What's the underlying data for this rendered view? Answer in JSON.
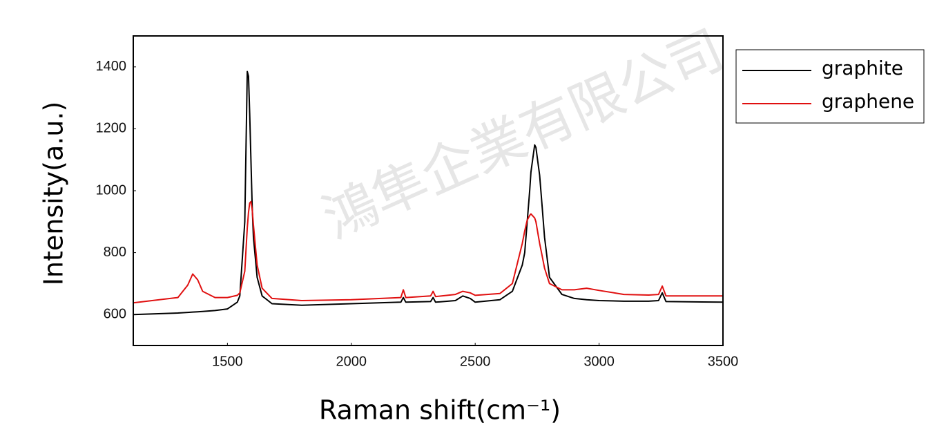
{
  "chart_data": {
    "type": "line",
    "x_label": "Raman shift(cm⁻¹)",
    "y_label": "Intensity(a.u.)",
    "watermark": "鴻隼企業有限公司",
    "legend": "outside-right",
    "xlim": [
      1120,
      3500
    ],
    "xticks": [
      1500,
      2000,
      2500,
      3000,
      3500
    ],
    "ylim": [
      500,
      1500
    ],
    "yticks": [
      600,
      800,
      1000,
      1200,
      1400
    ],
    "x": [
      1120,
      1300,
      1340,
      1360,
      1380,
      1400,
      1450,
      1500,
      1540,
      1550,
      1570,
      1580,
      1585,
      1590,
      1595,
      1600,
      1605,
      1620,
      1640,
      1680,
      1800,
      2000,
      2200,
      2210,
      2220,
      2320,
      2330,
      2340,
      2420,
      2450,
      2480,
      2500,
      2600,
      2650,
      2690,
      2700,
      2710,
      2720,
      2725,
      2740,
      2745,
      2760,
      2770,
      2780,
      2800,
      2850,
      2900,
      2950,
      3000,
      3100,
      3200,
      3240,
      3255,
      3270,
      3500
    ],
    "series": [
      {
        "name": "graphite",
        "color": "#000000",
        "values": [
          600,
          605,
          607,
          608,
          609,
          610,
          613,
          618,
          640,
          660,
          900,
          1385,
          1370,
          1250,
          1100,
          950,
          850,
          720,
          660,
          635,
          630,
          635,
          640,
          655,
          640,
          642,
          655,
          640,
          645,
          660,
          652,
          640,
          648,
          675,
          760,
          800,
          900,
          1000,
          1060,
          1148,
          1140,
          1050,
          950,
          850,
          720,
          665,
          652,
          648,
          645,
          643,
          643,
          645,
          670,
          642,
          640
        ]
      },
      {
        "name": "graphene",
        "color": "#e01010",
        "values": [
          638,
          655,
          695,
          731,
          712,
          675,
          655,
          655,
          662,
          670,
          740,
          880,
          930,
          960,
          965,
          940,
          890,
          760,
          685,
          652,
          645,
          648,
          655,
          680,
          655,
          660,
          675,
          658,
          665,
          675,
          670,
          662,
          668,
          700,
          830,
          870,
          905,
          920,
          925,
          912,
          900,
          830,
          790,
          750,
          700,
          680,
          680,
          685,
          678,
          665,
          663,
          665,
          692,
          660,
          660
        ]
      }
    ]
  }
}
